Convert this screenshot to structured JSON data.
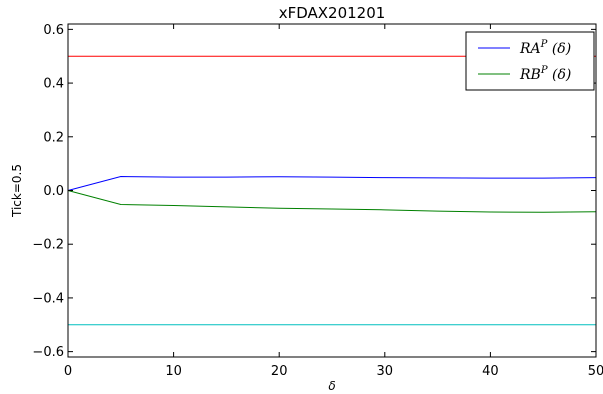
{
  "chart_data": {
    "type": "line",
    "title": "xFDAX201201",
    "xlabel": "δ",
    "ylabel": "Tick=0.5",
    "xlim": [
      0,
      50
    ],
    "ylim": [
      -0.62,
      0.62
    ],
    "xticks": [
      0,
      10,
      20,
      30,
      40,
      50
    ],
    "xtick_labels": [
      "0",
      "10",
      "20",
      "30",
      "40",
      "50"
    ],
    "yticks": [
      0.6,
      0.4,
      0.2,
      0.0,
      -0.2,
      -0.4,
      -0.6
    ],
    "ytick_labels": [
      "0.6",
      "0.4",
      "0.2",
      "0.0",
      "−0.2",
      "−0.4",
      "−0.6"
    ],
    "grid": false,
    "legend_position": "top-right",
    "series": [
      {
        "name": "RA^P (δ)",
        "legend_base": "RA",
        "legend_sup": "P",
        "legend_tail": " (δ)",
        "color": "#0000ff",
        "x": [
          0,
          5,
          10,
          15,
          20,
          25,
          30,
          35,
          40,
          45,
          50
        ],
        "y": [
          0.0,
          0.052,
          0.05,
          0.05,
          0.051,
          0.05,
          0.048,
          0.047,
          0.046,
          0.046,
          0.048
        ]
      },
      {
        "name": "RB^P (δ)",
        "legend_base": "RB",
        "legend_sup": "P",
        "legend_tail": " (δ)",
        "color": "#008000",
        "x": [
          0,
          5,
          10,
          15,
          20,
          25,
          30,
          35,
          40,
          45,
          50
        ],
        "y": [
          0.0,
          -0.052,
          -0.056,
          -0.061,
          -0.066,
          -0.069,
          -0.072,
          -0.077,
          -0.08,
          -0.081,
          -0.079
        ]
      }
    ],
    "reference_lines": [
      {
        "y": 0.5,
        "color": "#ff0000"
      },
      {
        "y": -0.5,
        "color": "#00bfbf"
      }
    ]
  }
}
